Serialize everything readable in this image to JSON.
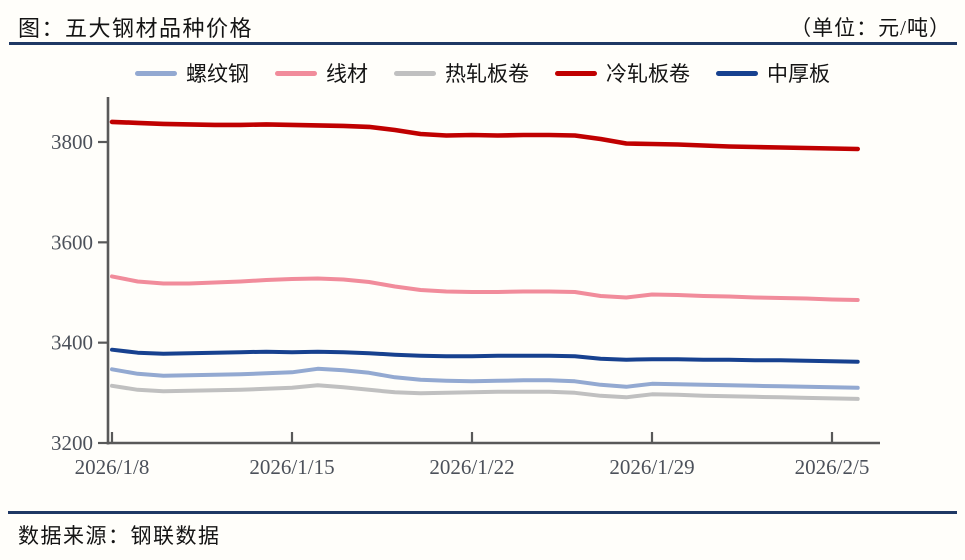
{
  "header": {
    "title": "图：五大钢材品种价格",
    "unit": "（单位：元/吨）"
  },
  "footer": {
    "source": "数据来源：钢联数据"
  },
  "colors": {
    "rule": "#1f3864",
    "axis": "#595959",
    "tick_label": "#4c515a"
  },
  "chart_data": {
    "type": "line",
    "title": "五大钢材品种价格",
    "unit_label": "元/吨",
    "grid": false,
    "legend_position": "top",
    "ylim": [
      3200,
      3890
    ],
    "yticks": [
      3200,
      3400,
      3600,
      3800
    ],
    "x": [
      "2026/1/8",
      "2026/1/9",
      "2026/1/10",
      "2026/1/11",
      "2026/1/12",
      "2026/1/13",
      "2026/1/14",
      "2026/1/15",
      "2026/1/16",
      "2026/1/17",
      "2026/1/18",
      "2026/1/19",
      "2026/1/20",
      "2026/1/21",
      "2026/1/22",
      "2026/1/23",
      "2026/1/24",
      "2026/1/25",
      "2026/1/26",
      "2026/1/27",
      "2026/1/28",
      "2026/1/29",
      "2026/1/30",
      "2026/1/31",
      "2026/2/1",
      "2026/2/2",
      "2026/2/3",
      "2026/2/4",
      "2026/2/5",
      "2026/2/6"
    ],
    "x_tick_labels": [
      "2026/1/8",
      "2026/1/15",
      "2026/1/22",
      "2026/1/29",
      "2026/2/5"
    ],
    "series": [
      {
        "name": "螺纹钢",
        "color": "#93a9d1",
        "line_width": 4,
        "values": [
          3347,
          3338,
          3334,
          3335,
          3336,
          3337,
          3339,
          3341,
          3348,
          3345,
          3340,
          3331,
          3326,
          3324,
          3323,
          3324,
          3325,
          3325,
          3323,
          3316,
          3312,
          3318,
          3317,
          3316,
          3315,
          3314,
          3313,
          3312,
          3311,
          3310
        ]
      },
      {
        "name": "线材",
        "color": "#f18c9b",
        "line_width": 4,
        "values": [
          3532,
          3522,
          3518,
          3518,
          3520,
          3522,
          3525,
          3527,
          3528,
          3526,
          3521,
          3512,
          3505,
          3502,
          3501,
          3501,
          3502,
          3502,
          3501,
          3493,
          3490,
          3496,
          3495,
          3493,
          3492,
          3490,
          3489,
          3488,
          3486,
          3485
        ]
      },
      {
        "name": "热轧板卷",
        "color": "#c0c0c0",
        "line_width": 4,
        "values": [
          3314,
          3306,
          3303,
          3304,
          3305,
          3306,
          3308,
          3310,
          3315,
          3311,
          3306,
          3301,
          3299,
          3300,
          3301,
          3302,
          3302,
          3302,
          3300,
          3294,
          3291,
          3297,
          3296,
          3294,
          3293,
          3292,
          3291,
          3290,
          3289,
          3288
        ]
      },
      {
        "name": "冷轧板卷",
        "color": "#c00000",
        "line_width": 4.6,
        "values": [
          3840,
          3838,
          3836,
          3835,
          3834,
          3834,
          3835,
          3834,
          3833,
          3832,
          3830,
          3824,
          3816,
          3813,
          3814,
          3813,
          3814,
          3814,
          3813,
          3806,
          3797,
          3796,
          3795,
          3793,
          3791,
          3790,
          3789,
          3788,
          3787,
          3786
        ]
      },
      {
        "name": "中厚板",
        "color": "#17418f",
        "line_width": 4,
        "values": [
          3386,
          3380,
          3378,
          3379,
          3380,
          3381,
          3382,
          3381,
          3382,
          3381,
          3379,
          3376,
          3374,
          3373,
          3373,
          3374,
          3374,
          3374,
          3373,
          3368,
          3366,
          3367,
          3367,
          3366,
          3366,
          3365,
          3365,
          3364,
          3363,
          3362
        ]
      }
    ]
  }
}
